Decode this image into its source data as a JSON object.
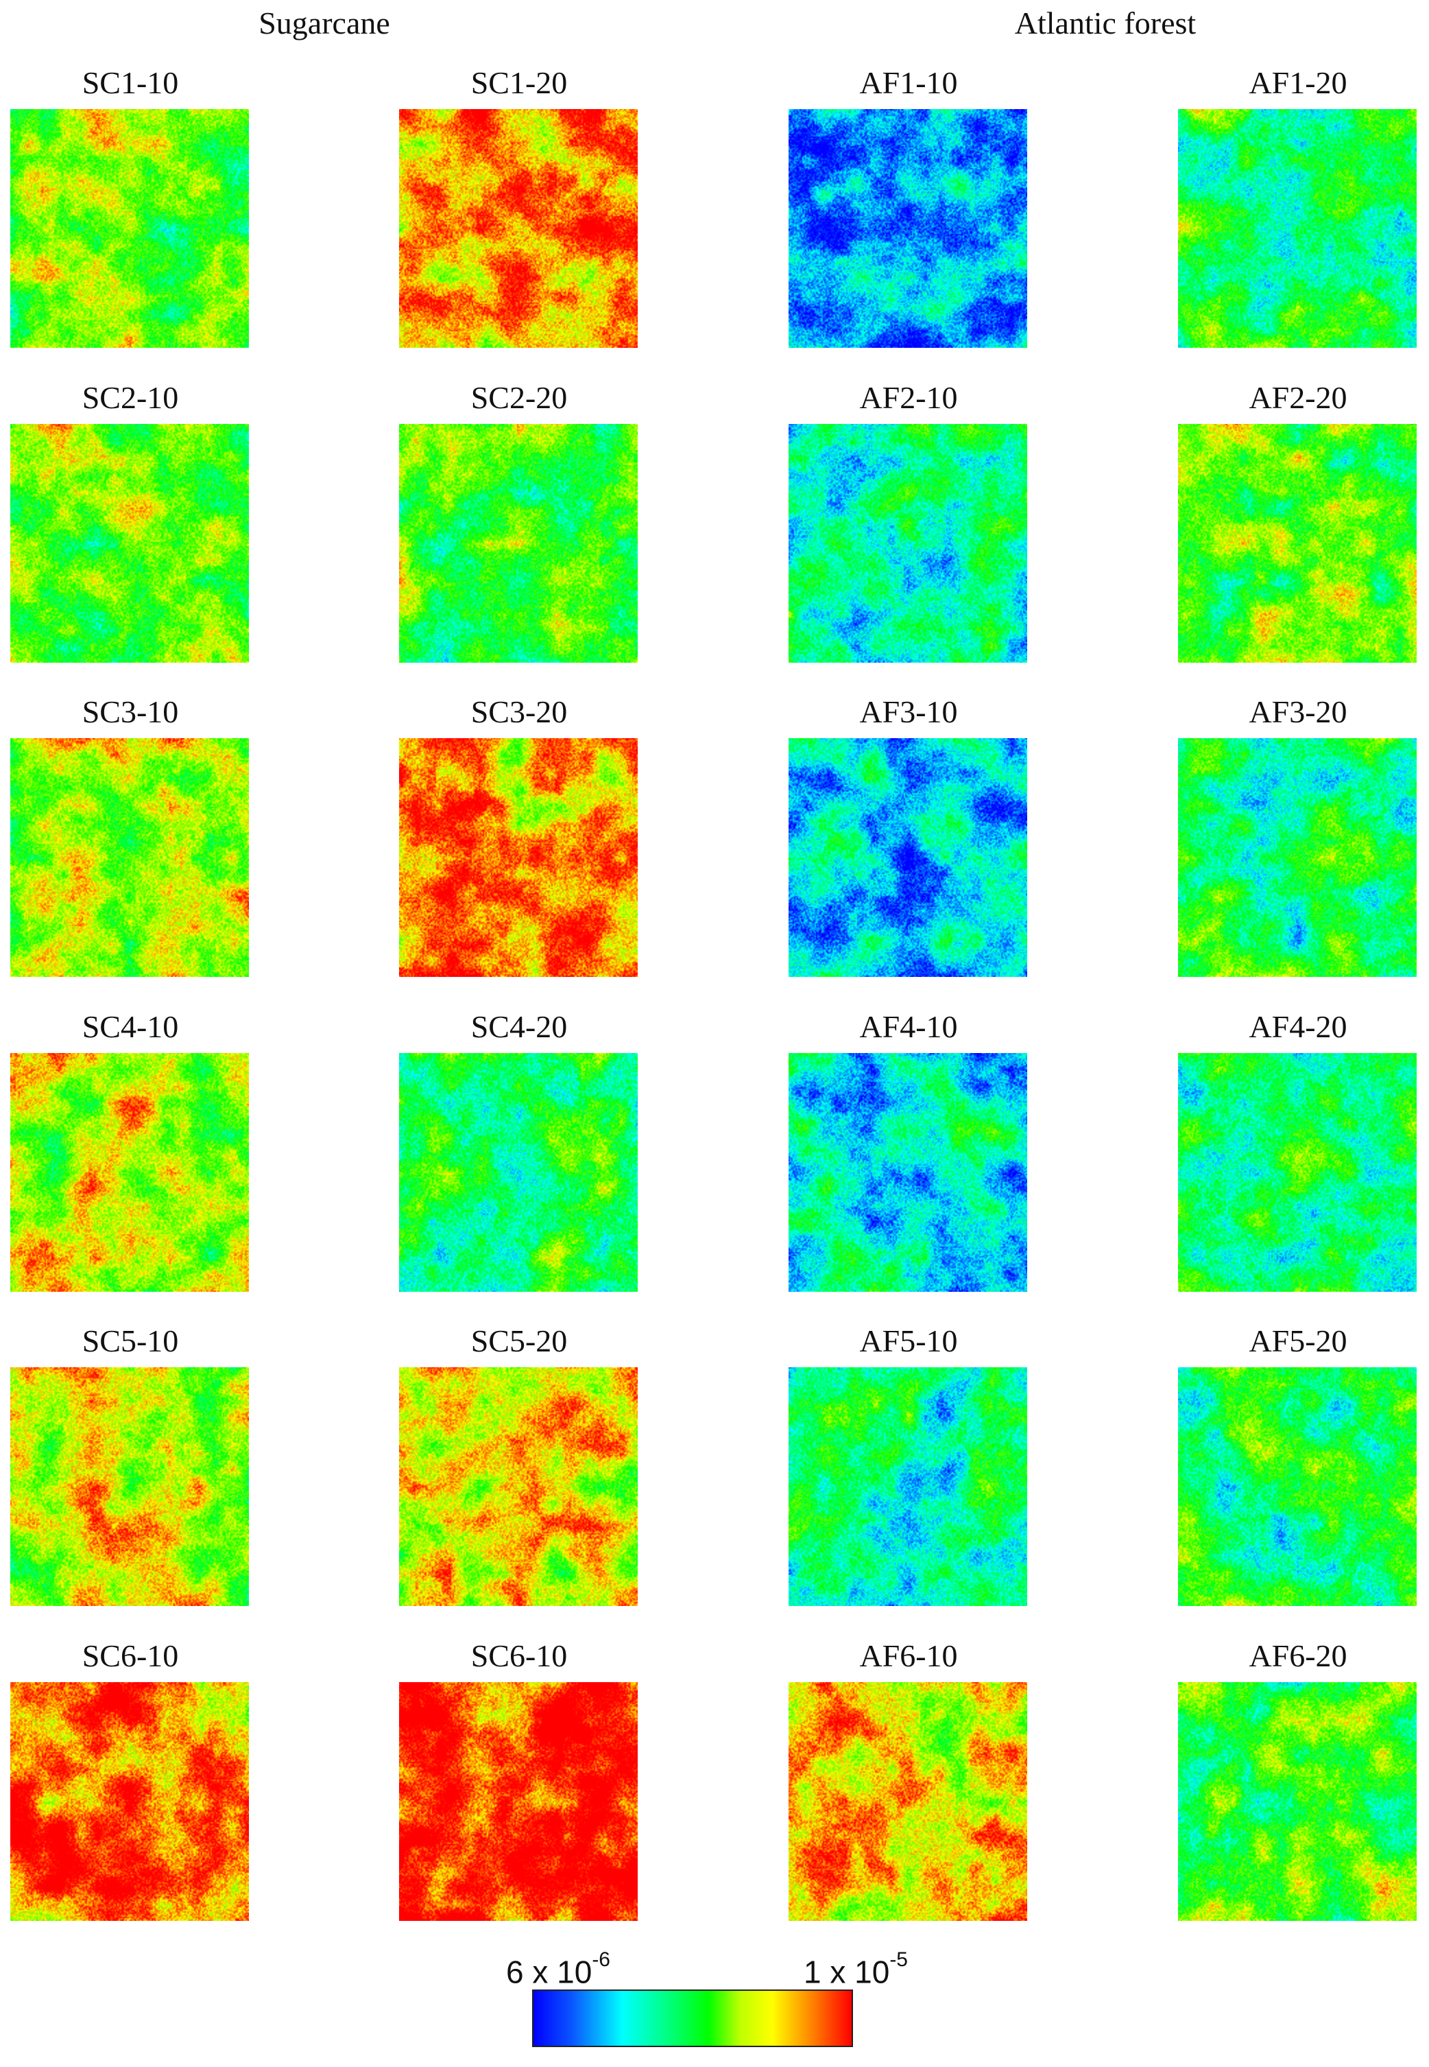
{
  "groups": [
    {
      "title": "Sugarcane"
    },
    {
      "title": "Atlantic forest"
    }
  ],
  "panels": [
    {
      "label": "SC1-10",
      "level": 0.55
    },
    {
      "label": "SC1-20",
      "level": 0.86
    },
    {
      "label": "AF1-10",
      "level": 0.12
    },
    {
      "label": "AF1-20",
      "level": 0.42
    },
    {
      "label": "SC2-10",
      "level": 0.55
    },
    {
      "label": "SC2-20",
      "level": 0.5
    },
    {
      "label": "AF2-10",
      "level": 0.3
    },
    {
      "label": "AF2-20",
      "level": 0.52
    },
    {
      "label": "SC3-10",
      "level": 0.68
    },
    {
      "label": "SC3-20",
      "level": 0.8
    },
    {
      "label": "AF3-10",
      "level": 0.22
    },
    {
      "label": "AF3-20",
      "level": 0.42
    },
    {
      "label": "SC4-10",
      "level": 0.65
    },
    {
      "label": "SC4-20",
      "level": 0.44
    },
    {
      "label": "AF4-10",
      "level": 0.25
    },
    {
      "label": "AF4-20",
      "level": 0.42
    },
    {
      "label": "SC5-10",
      "level": 0.66
    },
    {
      "label": "SC5-20",
      "level": 0.74
    },
    {
      "label": "AF5-10",
      "level": 0.34
    },
    {
      "label": "AF5-20",
      "level": 0.4
    },
    {
      "label": "SC6-10",
      "level": 0.88
    },
    {
      "label": "SC6-10",
      "level": 0.97
    },
    {
      "label": "AF6-10",
      "level": 0.76
    },
    {
      "label": "AF6-20",
      "level": 0.5
    }
  ],
  "colorbar": {
    "min_mantissa": "6 x 10",
    "min_exponent": "-6",
    "max_mantissa": "1 x 10",
    "max_exponent": "-5",
    "colors": [
      "#0000ff",
      "#00ffff",
      "#00ff00",
      "#ffff00",
      "#ff0000"
    ]
  }
}
